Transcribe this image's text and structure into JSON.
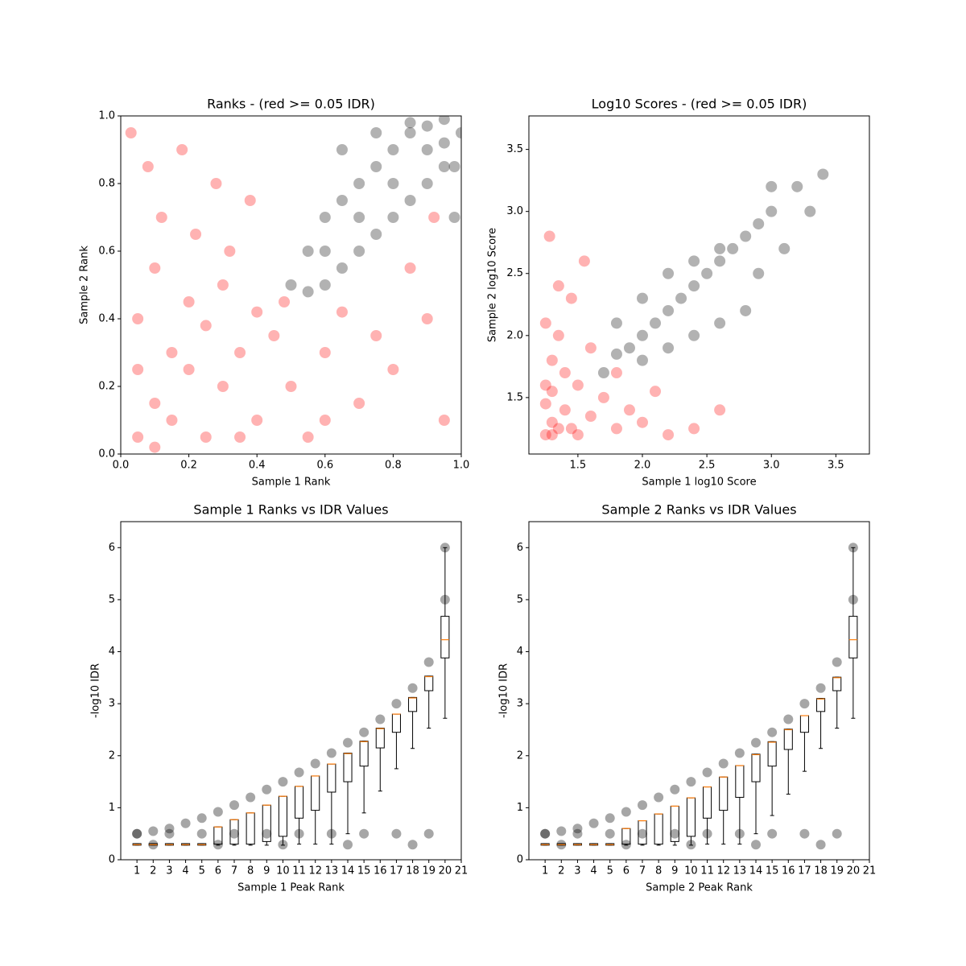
{
  "chart_data": [
    {
      "type": "scatter",
      "title": "Ranks - (red >= 0.05 IDR)",
      "x_label": "Sample 1 Rank",
      "y_label": "Sample 2 Rank",
      "xlim": [
        0,
        1
      ],
      "ylim": [
        0,
        1
      ],
      "xticks": [
        {
          "value": 0,
          "label": "0.0"
        },
        0.2,
        0.4,
        0.6,
        0.8,
        {
          "value": 1,
          "label": "1.0"
        }
      ],
      "yticks": [
        {
          "value": 0,
          "label": "0.0"
        },
        0.2,
        0.4,
        0.6,
        0.8,
        {
          "value": 1,
          "label": "1.0"
        }
      ],
      "series": [
        {
          "color": "#ff0000",
          "x": [
            0.05,
            0.1,
            0.15,
            0.2,
            0.25,
            0.3,
            0.35,
            0.4,
            0.45,
            0.5,
            0.55,
            0.6,
            0.7,
            0.8,
            0.9,
            0.95,
            0.05,
            0.1,
            0.2,
            0.3,
            0.4,
            0.12,
            0.22,
            0.32,
            0.08,
            0.18,
            0.28,
            0.38,
            0.48,
            0.15,
            0.05,
            0.25,
            0.65,
            0.75,
            0.85,
            0.92,
            0.35,
            0.1,
            0.6,
            0.03
          ],
          "y": [
            0.05,
            0.15,
            0.1,
            0.25,
            0.05,
            0.2,
            0.3,
            0.1,
            0.35,
            0.2,
            0.05,
            0.3,
            0.15,
            0.25,
            0.4,
            0.1,
            0.4,
            0.55,
            0.45,
            0.5,
            0.42,
            0.7,
            0.65,
            0.6,
            0.85,
            0.9,
            0.8,
            0.75,
            0.45,
            0.3,
            0.25,
            0.38,
            0.42,
            0.35,
            0.55,
            0.7,
            0.05,
            0.02,
            0.1,
            0.95
          ]
        },
        {
          "color": "#000000",
          "x": [
            0.5,
            0.55,
            0.6,
            0.65,
            0.7,
            0.75,
            0.8,
            0.85,
            0.9,
            0.95,
            1.0,
            0.55,
            0.6,
            0.65,
            0.7,
            0.75,
            0.8,
            0.85,
            0.9,
            0.95,
            0.6,
            0.7,
            0.8,
            0.9,
            0.95,
            0.65,
            0.75,
            0.85,
            0.98,
            0.98
          ],
          "y": [
            0.5,
            0.6,
            0.7,
            0.75,
            0.8,
            0.85,
            0.9,
            0.95,
            0.97,
            0.99,
            0.95,
            0.48,
            0.5,
            0.55,
            0.6,
            0.65,
            0.7,
            0.75,
            0.8,
            0.85,
            0.6,
            0.7,
            0.8,
            0.9,
            0.92,
            0.9,
            0.95,
            0.98,
            0.7,
            0.85
          ]
        }
      ]
    },
    {
      "type": "scatter",
      "title": "Log10 Scores - (red >= 0.05 IDR)",
      "x_label": "Sample 1 log10 Score",
      "y_label": "Sample 2 log10 Score",
      "xlim": [
        1.12,
        3.76
      ],
      "ylim": [
        1.045,
        3.77
      ],
      "xticks": [
        1.5,
        {
          "value": 2,
          "label": "2.0"
        },
        2.5,
        {
          "value": 3,
          "label": "3.0"
        },
        3.5
      ],
      "yticks": [
        1.5,
        {
          "value": 2,
          "label": "2.0"
        },
        2.5,
        {
          "value": 3,
          "label": "3.0"
        },
        3.5
      ],
      "series": [
        {
          "color": "#ff0000",
          "x": [
            1.25,
            1.3,
            1.35,
            1.4,
            1.5,
            1.6,
            1.7,
            1.8,
            1.9,
            2.0,
            2.2,
            2.4,
            1.25,
            1.3,
            1.35,
            1.45,
            1.55,
            1.25,
            1.3,
            1.4,
            1.5,
            1.6,
            1.25,
            1.35,
            1.28,
            2.1,
            2.6,
            1.8,
            1.3,
            1.45
          ],
          "y": [
            1.2,
            1.3,
            1.25,
            1.4,
            1.2,
            1.35,
            1.5,
            1.25,
            1.4,
            1.3,
            1.2,
            1.25,
            1.6,
            1.8,
            2.0,
            2.3,
            2.6,
            1.45,
            1.55,
            1.7,
            1.6,
            1.9,
            2.1,
            2.4,
            2.8,
            1.55,
            1.4,
            1.7,
            1.2,
            1.25
          ]
        },
        {
          "color": "#000000",
          "x": [
            1.7,
            1.8,
            1.9,
            2.0,
            2.1,
            2.2,
            2.3,
            2.4,
            2.5,
            2.6,
            2.7,
            2.8,
            2.9,
            3.0,
            3.2,
            3.4,
            1.8,
            2.0,
            2.2,
            2.4,
            2.6,
            2.0,
            2.2,
            2.4,
            2.6,
            2.8,
            3.1,
            3.3,
            2.9,
            3.0
          ],
          "y": [
            1.7,
            1.85,
            1.9,
            2.0,
            2.1,
            2.2,
            2.3,
            2.4,
            2.5,
            2.6,
            2.7,
            2.8,
            2.9,
            3.0,
            3.2,
            3.3,
            2.1,
            2.3,
            2.5,
            2.6,
            2.7,
            1.8,
            1.9,
            2.0,
            2.1,
            2.2,
            2.7,
            3.0,
            2.5,
            3.2
          ]
        }
      ]
    },
    {
      "type": "boxplot",
      "title": "Sample 1 Ranks vs IDR Values",
      "x_label": "Sample 1 Peak Rank",
      "y_label": "-log10 IDR",
      "xlim": [
        0,
        21
      ],
      "ylim": [
        0,
        6.5
      ],
      "xticks": [
        1,
        2,
        3,
        4,
        5,
        6,
        7,
        8,
        9,
        10,
        11,
        12,
        13,
        14,
        15,
        16,
        17,
        18,
        19,
        20,
        21
      ],
      "yticks": [
        0,
        1,
        2,
        3,
        4,
        5,
        6
      ],
      "positions": [
        1,
        2,
        3,
        4,
        5,
        6,
        7,
        8,
        9,
        10,
        11,
        12,
        13,
        14,
        15,
        16,
        17,
        18,
        19,
        20
      ],
      "whisker_low": [
        0.28,
        0.28,
        0.28,
        0.28,
        0.28,
        0.28,
        0.28,
        0.28,
        0.28,
        0.28,
        0.3,
        0.3,
        0.3,
        0.5,
        0.9,
        1.32,
        1.75,
        2.14,
        2.53,
        2.72
      ],
      "q1": [
        0.28,
        0.28,
        0.28,
        0.28,
        0.28,
        0.3,
        0.3,
        0.3,
        0.35,
        0.45,
        0.8,
        0.95,
        1.3,
        1.5,
        1.8,
        2.15,
        2.45,
        2.85,
        3.25,
        3.88
      ],
      "median": [
        0.29,
        0.29,
        0.29,
        0.29,
        0.29,
        0.63,
        0.77,
        0.9,
        1.05,
        1.22,
        1.41,
        1.61,
        1.84,
        2.04,
        2.27,
        2.52,
        2.8,
        3.11,
        3.52,
        4.23
      ],
      "q3": [
        0.31,
        0.31,
        0.31,
        0.31,
        0.31,
        0.63,
        0.77,
        0.9,
        1.05,
        1.22,
        1.41,
        1.61,
        1.84,
        2.05,
        2.28,
        2.53,
        2.8,
        3.12,
        3.53,
        4.68
      ],
      "whisker_high": [
        0.31,
        0.31,
        0.31,
        0.31,
        0.31,
        0.63,
        0.77,
        0.9,
        1.05,
        1.22,
        1.41,
        1.61,
        1.84,
        2.05,
        2.28,
        2.53,
        2.8,
        3.12,
        3.53,
        6.0
      ],
      "points": {
        "color": "#000000",
        "x": [
          1,
          2,
          3,
          4,
          5,
          6,
          7,
          8,
          9,
          10,
          11,
          12,
          13,
          14,
          15,
          16,
          17,
          18,
          19,
          20,
          20,
          1,
          3,
          5,
          7,
          9,
          11,
          13,
          15,
          17,
          19,
          2,
          6,
          10,
          14,
          18
        ],
        "y": [
          0.5,
          0.55,
          0.6,
          0.7,
          0.8,
          0.92,
          1.05,
          1.2,
          1.35,
          1.5,
          1.68,
          1.85,
          2.05,
          2.25,
          2.45,
          2.7,
          3.0,
          3.3,
          3.8,
          5.0,
          6.0,
          0.5,
          0.5,
          0.5,
          0.5,
          0.5,
          0.5,
          0.5,
          0.5,
          0.5,
          0.5,
          0.29,
          0.29,
          0.29,
          0.29,
          0.29
        ]
      }
    },
    {
      "type": "boxplot",
      "title": "Sample 2 Ranks vs IDR Values",
      "x_label": "Sample 2 Peak Rank",
      "y_label": "-log10 IDR",
      "xlim": [
        0,
        21
      ],
      "ylim": [
        0,
        6.5
      ],
      "xticks": [
        1,
        2,
        3,
        4,
        5,
        6,
        7,
        8,
        9,
        10,
        11,
        12,
        13,
        14,
        15,
        16,
        17,
        18,
        19,
        20,
        21
      ],
      "yticks": [
        0,
        1,
        2,
        3,
        4,
        5,
        6
      ],
      "positions": [
        1,
        2,
        3,
        4,
        5,
        6,
        7,
        8,
        9,
        10,
        11,
        12,
        13,
        14,
        15,
        16,
        17,
        18,
        19,
        20
      ],
      "whisker_low": [
        0.28,
        0.28,
        0.28,
        0.28,
        0.28,
        0.28,
        0.28,
        0.28,
        0.28,
        0.28,
        0.3,
        0.3,
        0.3,
        0.5,
        0.85,
        1.26,
        1.7,
        2.14,
        2.53,
        2.72
      ],
      "q1": [
        0.28,
        0.28,
        0.28,
        0.28,
        0.28,
        0.3,
        0.3,
        0.3,
        0.35,
        0.45,
        0.8,
        0.95,
        1.2,
        1.5,
        1.8,
        2.12,
        2.45,
        2.85,
        3.25,
        3.88
      ],
      "median": [
        0.29,
        0.29,
        0.29,
        0.29,
        0.29,
        0.6,
        0.75,
        0.88,
        1.03,
        1.19,
        1.4,
        1.59,
        1.81,
        2.02,
        2.26,
        2.5,
        2.77,
        3.09,
        3.5,
        4.23
      ],
      "q3": [
        0.31,
        0.31,
        0.31,
        0.31,
        0.31,
        0.6,
        0.75,
        0.88,
        1.03,
        1.19,
        1.4,
        1.59,
        1.81,
        2.03,
        2.27,
        2.51,
        2.77,
        3.1,
        3.51,
        4.68
      ],
      "whisker_high": [
        0.31,
        0.31,
        0.31,
        0.31,
        0.31,
        0.6,
        0.75,
        0.88,
        1.03,
        1.19,
        1.4,
        1.59,
        1.81,
        2.03,
        2.27,
        2.51,
        2.77,
        3.1,
        3.51,
        6.0
      ],
      "points": {
        "color": "#000000",
        "x": [
          1,
          2,
          3,
          4,
          5,
          6,
          7,
          8,
          9,
          10,
          11,
          12,
          13,
          14,
          15,
          16,
          17,
          18,
          19,
          20,
          20,
          1,
          3,
          5,
          7,
          9,
          11,
          13,
          15,
          17,
          19,
          2,
          6,
          10,
          14,
          18
        ],
        "y": [
          0.5,
          0.55,
          0.6,
          0.7,
          0.8,
          0.92,
          1.05,
          1.2,
          1.35,
          1.5,
          1.68,
          1.85,
          2.05,
          2.25,
          2.45,
          2.7,
          3.0,
          3.3,
          3.8,
          5.0,
          6.0,
          0.5,
          0.5,
          0.5,
          0.5,
          0.5,
          0.5,
          0.5,
          0.5,
          0.5,
          0.5,
          0.29,
          0.29,
          0.29,
          0.29,
          0.29
        ]
      }
    }
  ]
}
